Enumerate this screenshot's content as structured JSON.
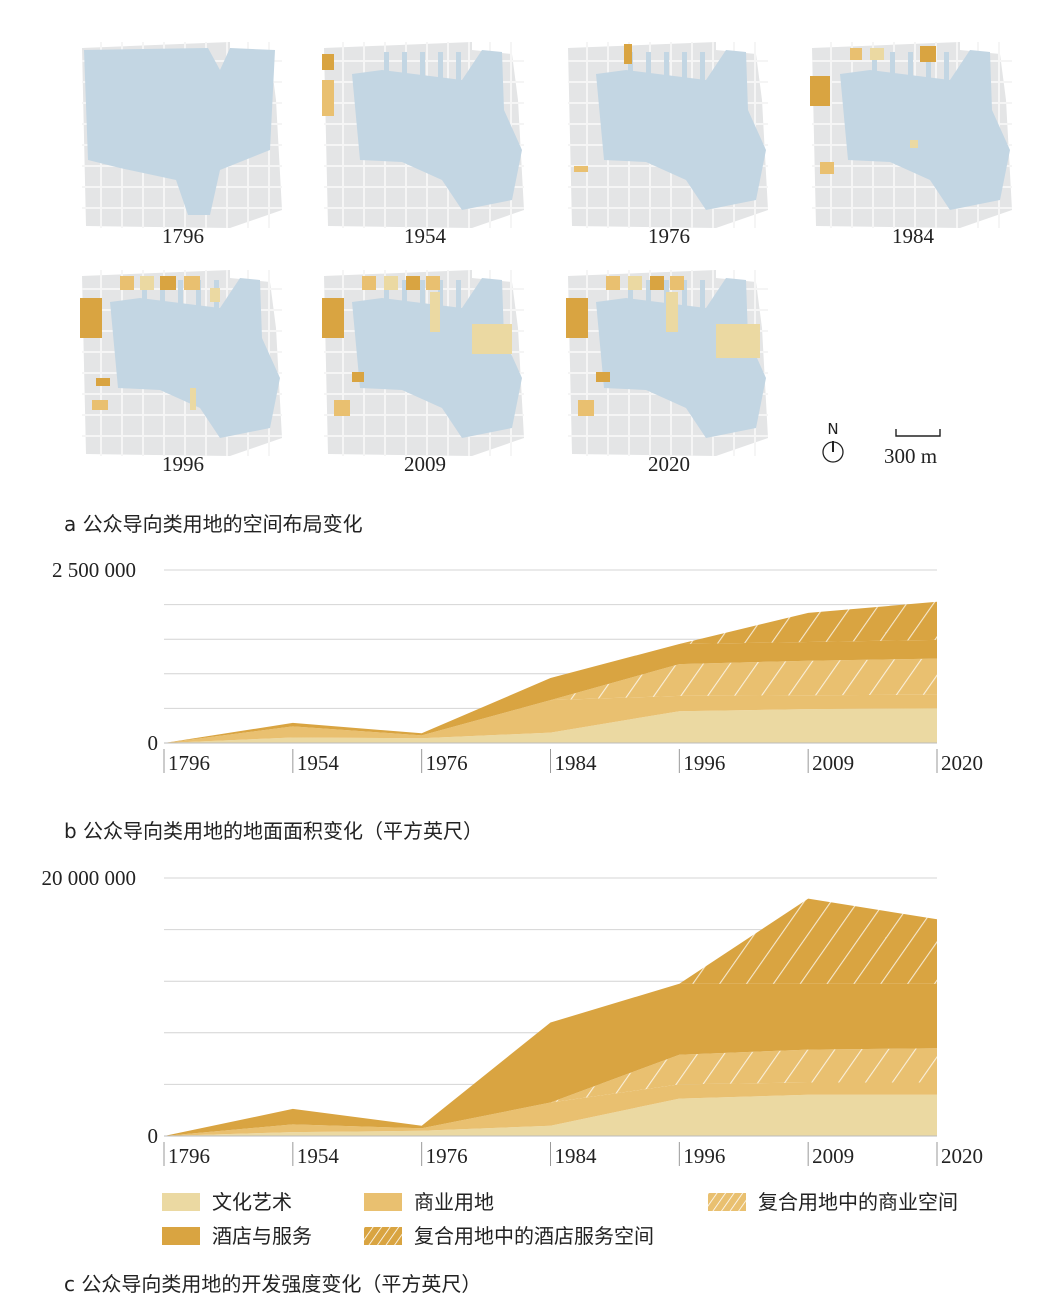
{
  "maps": {
    "years": [
      "1796",
      "1954",
      "1976",
      "1984",
      "1996",
      "2009",
      "2020"
    ],
    "north": "N",
    "scale_label": "300 m"
  },
  "captions": {
    "a": "a  公众导向类用地的空间布局变化",
    "b": "b  公众导向类用地的地面面积变化（平方英尺）",
    "c": "c  公众导向类用地的开发强度变化（平方英尺）"
  },
  "legend": [
    {
      "label": "文化艺术",
      "color": "#ebd9a2",
      "hatch": false
    },
    {
      "label": "商业用地",
      "color": "#e9c070",
      "hatch": false
    },
    {
      "label": "复合用地中的商业空间",
      "color": "#e9c070",
      "hatch": true
    },
    {
      "label": "酒店与服务",
      "color": "#d9a441",
      "hatch": false
    },
    {
      "label": "复合用地中的酒店服务空间",
      "color": "#d9a441",
      "hatch": true
    }
  ],
  "chart_data": [
    {
      "type": "area",
      "stacked": true,
      "x": [
        "1796",
        "1954",
        "1976",
        "1984",
        "1996",
        "2009",
        "2020"
      ],
      "ylim": [
        0,
        2500000
      ],
      "ytick_labels": [
        "0",
        "2 500 000"
      ],
      "grid": true,
      "series": [
        {
          "name": "文化艺术",
          "color": "#ebd9a2",
          "hatch": false,
          "values": [
            0,
            80000,
            70000,
            150000,
            460000,
            490000,
            500000
          ]
        },
        {
          "name": "商业用地",
          "color": "#e9c070",
          "hatch": false,
          "values": [
            0,
            160000,
            40000,
            470000,
            220000,
            200000,
            200000
          ]
        },
        {
          "name": "复合用地中的商业空间",
          "color": "#e9c070",
          "hatch": true,
          "values": [
            0,
            0,
            0,
            0,
            460000,
            500000,
            520000
          ]
        },
        {
          "name": "酒店与服务",
          "color": "#d9a441",
          "hatch": false,
          "values": [
            0,
            50000,
            30000,
            320000,
            290000,
            270000,
            270000
          ]
        },
        {
          "name": "复合用地中的酒店服务空间",
          "color": "#d9a441",
          "hatch": true,
          "values": [
            0,
            0,
            0,
            0,
            0,
            420000,
            550000
          ]
        }
      ]
    },
    {
      "type": "area",
      "stacked": true,
      "x": [
        "1796",
        "1954",
        "1976",
        "1984",
        "1996",
        "2009",
        "2020"
      ],
      "ylim": [
        0,
        20000000
      ],
      "ytick_labels": [
        "0",
        "20 000 000"
      ],
      "grid": true,
      "series": [
        {
          "name": "文化艺术",
          "color": "#ebd9a2",
          "hatch": false,
          "values": [
            0,
            300000,
            400000,
            800000,
            2900000,
            3200000,
            3200000
          ]
        },
        {
          "name": "商业用地",
          "color": "#e9c070",
          "hatch": false,
          "values": [
            0,
            600000,
            200000,
            1800000,
            1100000,
            950000,
            950000
          ]
        },
        {
          "name": "复合用地中的商业空间",
          "color": "#e9c070",
          "hatch": true,
          "values": [
            0,
            0,
            0,
            0,
            2300000,
            2550000,
            2650000
          ]
        },
        {
          "name": "酒店与服务",
          "color": "#d9a441",
          "hatch": false,
          "values": [
            0,
            1200000,
            200000,
            6200000,
            5500000,
            5100000,
            5000000
          ]
        },
        {
          "name": "复合用地中的酒店服务空间",
          "color": "#d9a441",
          "hatch": true,
          "values": [
            0,
            0,
            0,
            0,
            0,
            6600000,
            5000000
          ]
        }
      ]
    }
  ]
}
